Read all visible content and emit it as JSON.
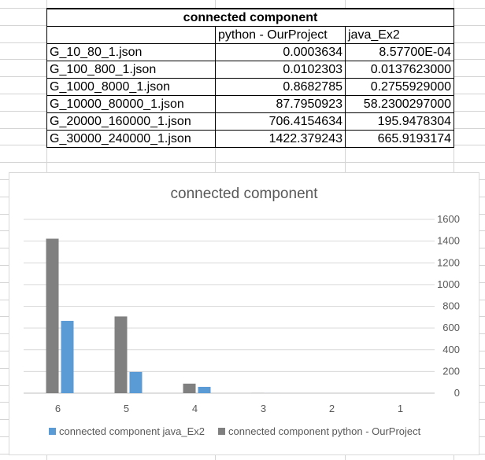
{
  "table": {
    "title": "connected component",
    "headers": [
      "",
      "python - OurProject",
      "java_Ex2"
    ],
    "rows": [
      [
        "G_10_80_1.json",
        "0.0003634",
        "8.57700E-04"
      ],
      [
        "G_100_800_1.json",
        "0.0102303",
        "0.0137623000"
      ],
      [
        "G_1000_8000_1.json",
        "0.8682785",
        "0.2755929000"
      ],
      [
        "G_10000_80000_1.json",
        "87.7950923",
        "58.2300297000"
      ],
      [
        "G_20000_160000_1.json",
        "706.4154634",
        "195.9478304"
      ],
      [
        "G_30000_240000_1.json",
        "1422.379243",
        "665.9193174"
      ]
    ]
  },
  "chart_data": {
    "type": "bar",
    "title": "connected component",
    "categories": [
      "6",
      "5",
      "4",
      "3",
      "2",
      "1"
    ],
    "series": [
      {
        "name": "connected component python - OurProject",
        "color": "#808080",
        "values": [
          1422.379243,
          706.4154634,
          87.7950923,
          0.8682785,
          0.0102303,
          0.0003634
        ]
      },
      {
        "name": "connected component java_Ex2",
        "color": "#5b9bd5",
        "values": [
          665.9193174,
          195.9478304,
          58.2300297,
          0.2755929,
          0.0137623,
          0.0008577
        ]
      }
    ],
    "ylim": [
      0,
      1600
    ],
    "yticks": [
      "0",
      "200",
      "400",
      "600",
      "800",
      "1000",
      "1200",
      "1400",
      "1600"
    ],
    "y_axis_side": "right",
    "grid": true,
    "legend_position": "bottom",
    "legend_order": [
      "connected component java_Ex2",
      "connected component python - OurProject"
    ]
  }
}
